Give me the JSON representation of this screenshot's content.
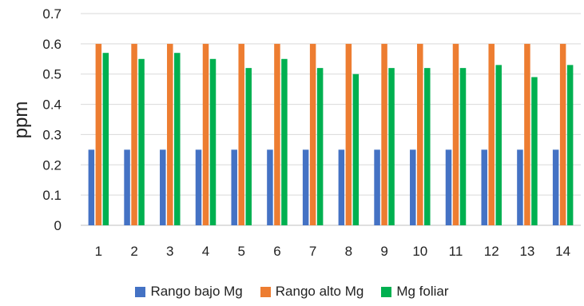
{
  "chart_data": {
    "type": "bar",
    "title": "",
    "xlabel": "",
    "ylabel": "ppm",
    "ylim": [
      0,
      0.7
    ],
    "yticks": [
      "0",
      "0.1",
      "0.2",
      "0.3",
      "0.4",
      "0.5",
      "0.6",
      "0.7"
    ],
    "grid": true,
    "legend_position": "bottom",
    "categories": [
      "1",
      "2",
      "3",
      "4",
      "5",
      "6",
      "7",
      "8",
      "9",
      "10",
      "11",
      "12",
      "13",
      "14"
    ],
    "series": [
      {
        "name": "Rango bajo Mg",
        "color": "#4472C4",
        "values": [
          0.25,
          0.25,
          0.25,
          0.25,
          0.25,
          0.25,
          0.25,
          0.25,
          0.25,
          0.25,
          0.25,
          0.25,
          0.25,
          0.25
        ]
      },
      {
        "name": "Rango alto Mg",
        "color": "#ED7D31",
        "values": [
          0.6,
          0.6,
          0.6,
          0.6,
          0.6,
          0.6,
          0.6,
          0.6,
          0.6,
          0.6,
          0.6,
          0.6,
          0.6,
          0.6
        ]
      },
      {
        "name": "Mg foliar",
        "color": "#00B050",
        "values": [
          0.57,
          0.55,
          0.57,
          0.55,
          0.52,
          0.55,
          0.52,
          0.5,
          0.52,
          0.52,
          0.52,
          0.53,
          0.49,
          0.53
        ]
      }
    ]
  }
}
